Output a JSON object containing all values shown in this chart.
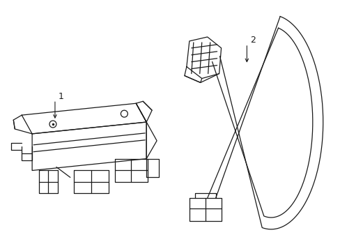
{
  "background_color": "#ffffff",
  "line_color": "#1a1a1a",
  "line_width": 0.9,
  "fig_width": 4.89,
  "fig_height": 3.6,
  "dpi": 100,
  "label_1": "1",
  "label_2": "2"
}
